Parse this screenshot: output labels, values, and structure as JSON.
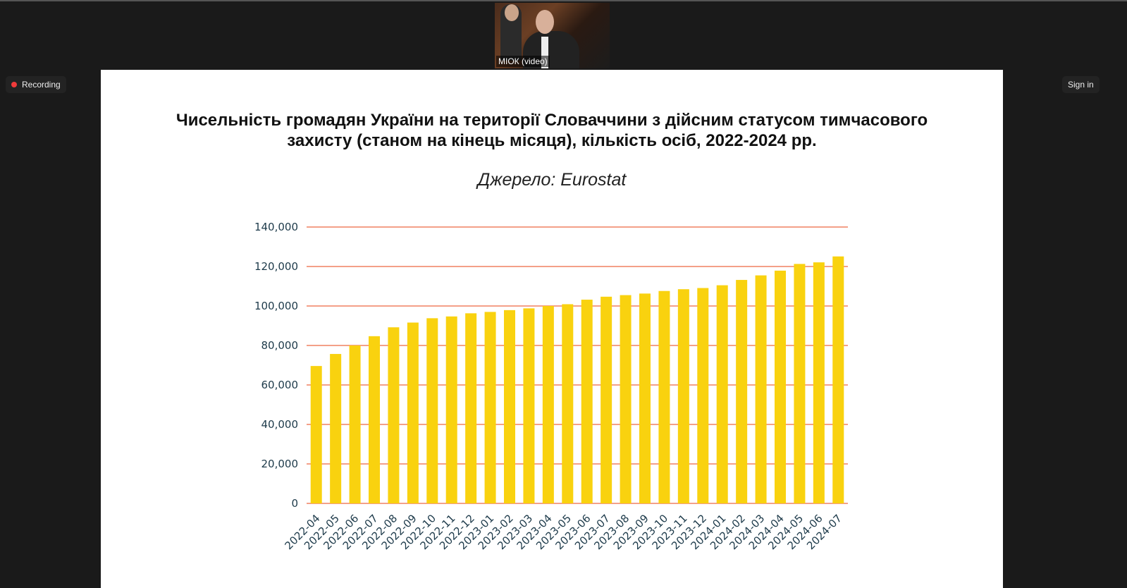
{
  "meeting": {
    "video_label": "МІОК (video)",
    "recording_label": "Recording",
    "sign_in_label": "Sign in",
    "recording_color": "#f03b3b"
  },
  "slide": {
    "title_line1": "Чисельність громадян України на території Словаччини з дійсним статусом тимчасового",
    "title_line2": "захисту (станом на кінець місяця), кількість осіб, 2022-2024 рр.",
    "source": "Джерело: Eurostat"
  },
  "chart_data": {
    "type": "bar",
    "categories": [
      "2022-04",
      "2022-05",
      "2022-06",
      "2022-07",
      "2022-08",
      "2022-09",
      "2022-10",
      "2022-11",
      "2022-12",
      "2023-01",
      "2023-02",
      "2023-03",
      "2023-04",
      "2023-05",
      "2023-06",
      "2023-07",
      "2023-08",
      "2023-09",
      "2023-10",
      "2023-11",
      "2023-12",
      "2024-01",
      "2024-02",
      "2024-03",
      "2024-04",
      "2024-05",
      "2024-06",
      "2024-07"
    ],
    "values": [
      69600,
      75700,
      80000,
      84700,
      89200,
      91600,
      93800,
      94700,
      96300,
      97000,
      97900,
      98800,
      100000,
      100900,
      103200,
      104700,
      105500,
      106300,
      107600,
      108500,
      109100,
      110500,
      113200,
      115500,
      117900,
      121300,
      122100,
      125100
    ],
    "ylim": [
      0,
      140000
    ],
    "yticks": [
      "0",
      "20,000",
      "40,000",
      "60,000",
      "80,000",
      "100,000",
      "120,000",
      "140,000"
    ],
    "grid": true,
    "bar_color": "#f9d20f",
    "grid_color": "#f08060"
  }
}
